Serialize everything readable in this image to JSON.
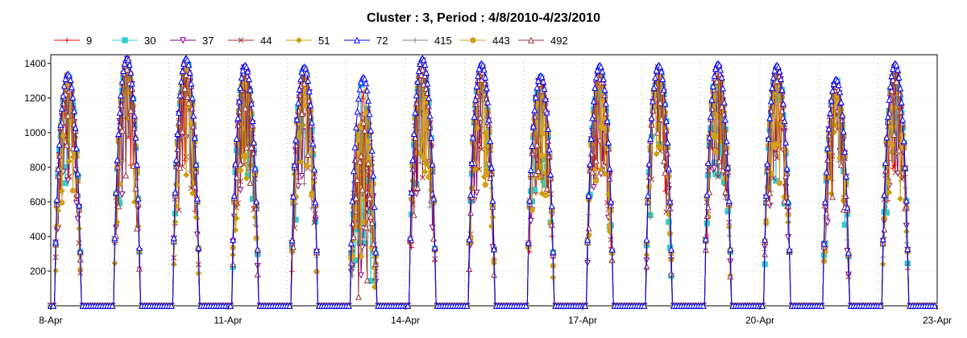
{
  "chart_data": {
    "type": "line",
    "title": "Cluster : 3, Period : 4/8/2010-4/23/2010",
    "xlabel": "",
    "ylabel": "",
    "x_range": [
      "2010-04-08",
      "2010-04-23"
    ],
    "xticks": [
      {
        "date": "2010-04-08",
        "label": "8-Apr"
      },
      {
        "date": "2010-04-11",
        "label": "11-Apr"
      },
      {
        "date": "2010-04-14",
        "label": "14-Apr"
      },
      {
        "date": "2010-04-17",
        "label": "17-Apr"
      },
      {
        "date": "2010-04-20",
        "label": "20-Apr"
      },
      {
        "date": "2010-04-23",
        "label": "23-Apr"
      }
    ],
    "ylim": [
      0,
      1450
    ],
    "yticks": [
      200,
      400,
      600,
      800,
      1000,
      1200,
      1400
    ],
    "grid": true,
    "legend_position": "top",
    "daily_peaks": [
      {
        "date": "2010-04-08",
        "peak": 1340
      },
      {
        "date": "2010-04-09",
        "peak": 1430
      },
      {
        "date": "2010-04-10",
        "peak": 1430
      },
      {
        "date": "2010-04-11",
        "peak": 1390
      },
      {
        "date": "2010-04-12",
        "peak": 1380
      },
      {
        "date": "2010-04-13",
        "peak": 1320
      },
      {
        "date": "2010-04-14",
        "peak": 1430
      },
      {
        "date": "2010-04-15",
        "peak": 1400
      },
      {
        "date": "2010-04-16",
        "peak": 1330
      },
      {
        "date": "2010-04-17",
        "peak": 1390
      },
      {
        "date": "2010-04-18",
        "peak": 1390
      },
      {
        "date": "2010-04-19",
        "peak": 1400
      },
      {
        "date": "2010-04-20",
        "peak": 1390
      },
      {
        "date": "2010-04-21",
        "peak": 1310
      },
      {
        "date": "2010-04-22",
        "peak": 1400
      }
    ],
    "series": [
      {
        "name": "9",
        "color": "#ff0000",
        "marker": "plus"
      },
      {
        "name": "30",
        "color": "#33cccc",
        "marker": "square"
      },
      {
        "name": "37",
        "color": "#800080",
        "marker": "triangle-down"
      },
      {
        "name": "44",
        "color": "#a52a2a",
        "marker": "x"
      },
      {
        "name": "51",
        "color": "#c8a000",
        "marker": "diamond"
      },
      {
        "name": "72",
        "color": "#0000ff",
        "marker": "triangle-up"
      },
      {
        "name": "415",
        "color": "#808080",
        "marker": "plus"
      },
      {
        "name": "443",
        "color": "#d4a020",
        "marker": "circle"
      },
      {
        "name": "492",
        "color": "#993333",
        "marker": "triangle-up"
      }
    ]
  }
}
